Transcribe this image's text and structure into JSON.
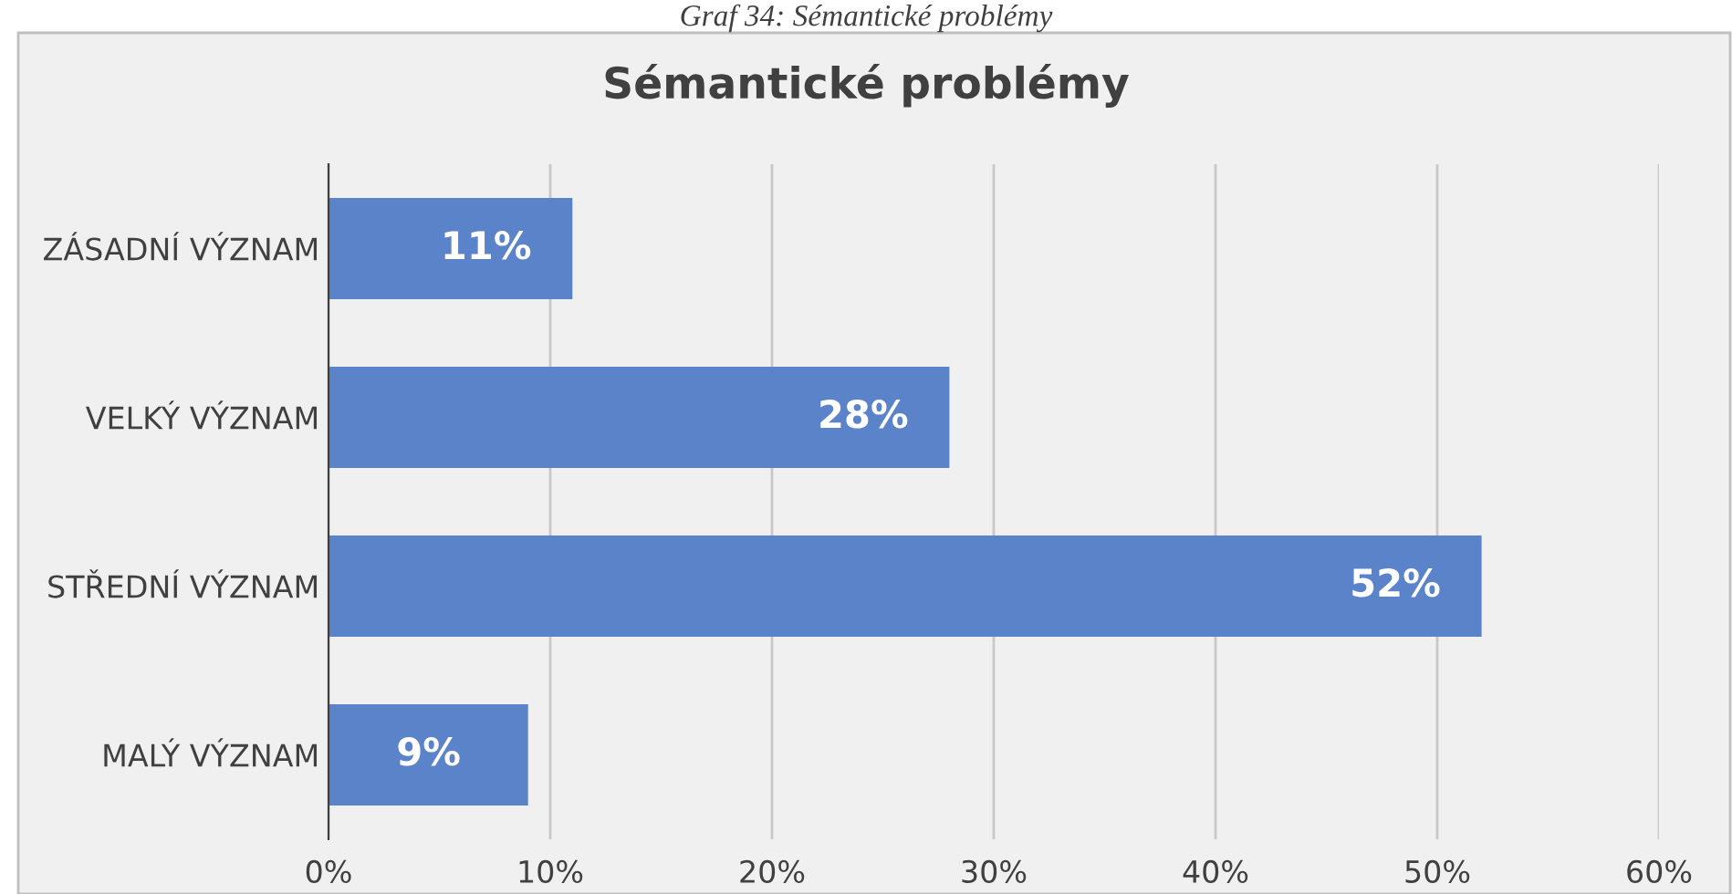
{
  "chart_data": {
    "type": "bar",
    "orientation": "horizontal",
    "title": "Sémantické problémy",
    "annotations": [
      "Graf 34: Sémantické problémy"
    ],
    "categories": [
      "ZÁSADNÍ VÝZNAM",
      "VELKÝ VÝZNAM",
      "STŘEDNÍ VÝZNAM",
      "MALÝ VÝZNAM"
    ],
    "values": [
      11,
      28,
      52,
      9
    ],
    "value_labels": [
      "11%",
      "28%",
      "52%",
      "9%"
    ],
    "color": "#5b83c9",
    "xlim": [
      0,
      60
    ],
    "xticks": [
      {
        "value": 0,
        "label": "0%"
      },
      {
        "value": 10,
        "label": "10%"
      },
      {
        "value": 20,
        "label": "20%"
      },
      {
        "value": 30,
        "label": "30%"
      },
      {
        "value": 40,
        "label": "40%"
      },
      {
        "value": 50,
        "label": "50%"
      },
      {
        "value": 60,
        "label": "60%"
      }
    ],
    "grid": "x",
    "legend": false
  }
}
